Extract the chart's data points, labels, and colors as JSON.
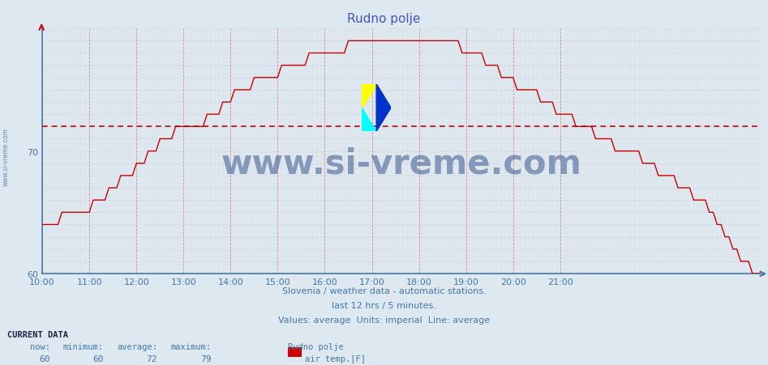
{
  "title": "Rudno polje",
  "title_color": "#4455bb",
  "bg_color": "#dde8f0",
  "plot_bg_color": "#dde8f0",
  "line_color": "#cc0000",
  "avg_line_color": "#cc0000",
  "avg_value": 72,
  "y_min": 60,
  "y_max": 80,
  "x_tick_labels": [
    "10:00",
    "11:00",
    "12:00",
    "13:00",
    "14:00",
    "15:00",
    "16:00",
    "17:00",
    "18:00",
    "19:00",
    "20:00",
    "21:00"
  ],
  "footer_line1": "Slovenia / weather data - automatic stations.",
  "footer_line2": "last 12 hrs / 5 minutes.",
  "footer_line3": "Values: average  Units: imperial  Line: average",
  "footer_color": "#4477aa",
  "current_data_label": "CURRENT DATA",
  "now_val": 60,
  "min_val": 60,
  "avg_val": 72,
  "max_val": 79,
  "station_name": "Rudno polje",
  "series_label": "air temp.[F]",
  "watermark_text": "www.si-vreme.com",
  "watermark_color": "#1a3a7a",
  "side_text": "www.si-vreme.com",
  "side_color": "#4477aa",
  "temp_data": [
    64,
    64,
    64,
    64,
    64,
    65,
    65,
    65,
    65,
    65,
    65,
    65,
    65,
    66,
    66,
    66,
    66,
    67,
    67,
    67,
    68,
    68,
    68,
    68,
    69,
    69,
    69,
    70,
    70,
    70,
    71,
    71,
    71,
    71,
    72,
    72,
    72,
    72,
    72,
    72,
    72,
    72,
    73,
    73,
    73,
    73,
    74,
    74,
    74,
    75,
    75,
    75,
    75,
    75,
    76,
    76,
    76,
    76,
    76,
    76,
    76,
    77,
    77,
    77,
    77,
    77,
    77,
    77,
    78,
    78,
    78,
    78,
    78,
    78,
    78,
    78,
    78,
    78,
    79,
    79,
    79,
    79,
    79,
    79,
    79,
    79,
    79,
    79,
    79,
    79,
    79,
    79,
    79,
    79,
    79,
    79,
    79,
    79,
    79,
    79,
    79,
    79,
    79,
    79,
    79,
    79,
    79,
    78,
    78,
    78,
    78,
    78,
    78,
    77,
    77,
    77,
    77,
    76,
    76,
    76,
    76,
    75,
    75,
    75,
    75,
    75,
    75,
    74,
    74,
    74,
    74,
    73,
    73,
    73,
    73,
    73,
    72,
    72,
    72,
    72,
    72,
    71,
    71,
    71,
    71,
    71,
    70,
    70,
    70,
    70,
    70,
    70,
    70,
    69,
    69,
    69,
    69,
    68,
    68,
    68,
    68,
    68,
    67,
    67,
    67,
    67,
    66,
    66,
    66,
    66,
    65,
    65,
    64,
    64,
    63,
    63,
    62,
    62,
    61,
    61,
    61,
    60,
    60,
    60
  ]
}
